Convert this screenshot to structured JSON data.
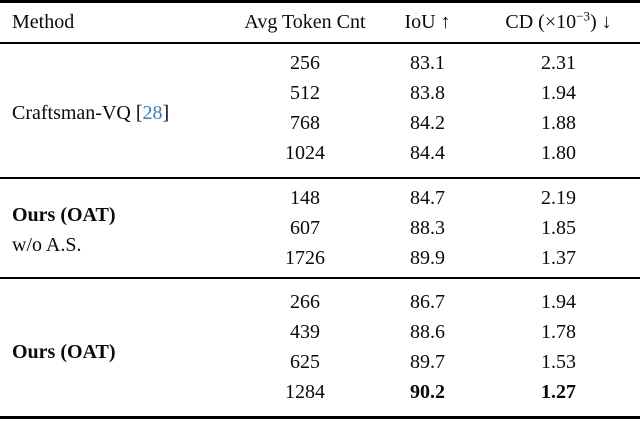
{
  "table": {
    "headers": {
      "method": "Method",
      "avg_token_cnt": "Avg Token Cnt",
      "iou_label": "IoU",
      "iou_arrow": "↑",
      "cd_prefix": "CD (×10",
      "cd_sup": "−3",
      "cd_close": ")",
      "cd_arrow": "↓"
    },
    "colors": {
      "citation_blue": "#3d7cbc",
      "text": "#0a0a0a",
      "rule": "#000000"
    },
    "groups": [
      {
        "method": "Craftsman-VQ",
        "method_bold": false,
        "citation_open": "[",
        "citation_number": "28",
        "citation_close": "]",
        "sub_label": "",
        "rows": [
          {
            "token": "256",
            "iou": "83.1",
            "cd": "2.31"
          },
          {
            "token": "512",
            "iou": "83.8",
            "cd": "1.94"
          },
          {
            "token": "768",
            "iou": "84.2",
            "cd": "1.88"
          },
          {
            "token": "1024",
            "iou": "84.4",
            "cd": "1.80"
          }
        ]
      },
      {
        "method": "Ours (OAT)",
        "method_bold": true,
        "citation_number": "",
        "sub_label": "w/o A.S.",
        "rows": [
          {
            "token": "148",
            "iou": "84.7",
            "cd": "2.19"
          },
          {
            "token": "607",
            "iou": "88.3",
            "cd": "1.85"
          },
          {
            "token": "1726",
            "iou": "89.9",
            "cd": "1.37"
          }
        ]
      },
      {
        "method": "Ours (OAT)",
        "method_bold": true,
        "citation_number": "",
        "sub_label": "",
        "rows": [
          {
            "token": "266",
            "iou": "86.7",
            "cd": "1.94"
          },
          {
            "token": "439",
            "iou": "88.6",
            "cd": "1.78"
          },
          {
            "token": "625",
            "iou": "89.7",
            "cd": "1.53"
          },
          {
            "token": "1284",
            "iou": "90.2",
            "cd": "1.27",
            "bold_iou": true,
            "bold_cd": true
          }
        ]
      }
    ]
  }
}
